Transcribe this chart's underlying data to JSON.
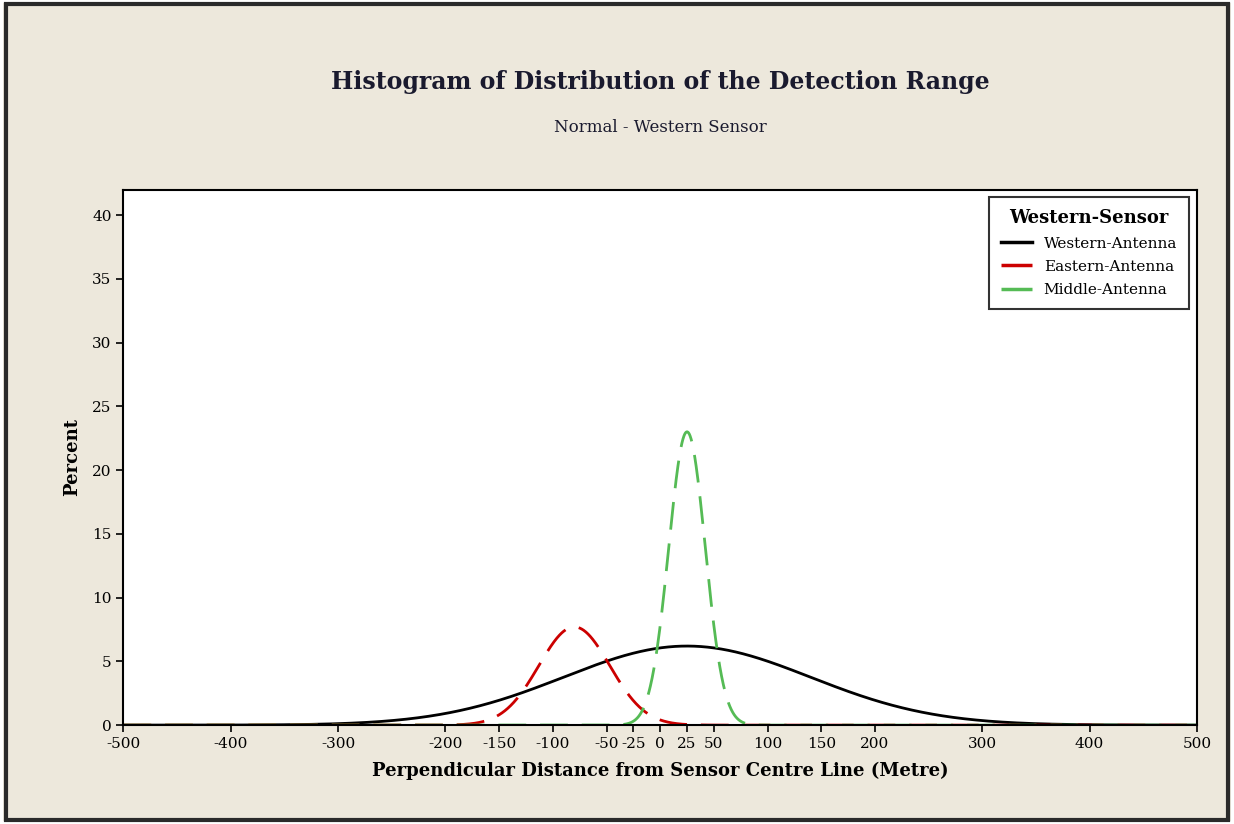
{
  "title": "Histogram of Distribution of the Detection Range",
  "subtitle": "Normal - Western Sensor",
  "xlabel": "Perpendicular Distance from Sensor Centre Line (Metre)",
  "ylabel": "Percent",
  "bg_color": "#ede8dc",
  "plot_bg_color": "#ffffff",
  "xlim": [
    -500,
    500
  ],
  "ylim": [
    0,
    42
  ],
  "xticks": [
    -500,
    -400,
    -300,
    -200,
    -150,
    -100,
    -50,
    -25,
    0,
    25,
    50,
    100,
    150,
    200,
    300,
    400,
    500
  ],
  "yticks": [
    0,
    5,
    10,
    15,
    20,
    25,
    30,
    35,
    40
  ],
  "western_antenna": {
    "mean": 25,
    "std": 115,
    "peak": 6.2,
    "color": "#000000",
    "linewidth": 2.0,
    "label": "Western-Antenna"
  },
  "eastern_antenna": {
    "mean": -80,
    "std": 33,
    "peak": 7.7,
    "color": "#cc0000",
    "linewidth": 2.0,
    "label": "Eastern-Antenna"
  },
  "middle_antenna": {
    "mean": 25,
    "std": 17,
    "peak": 23.0,
    "color": "#55bb55",
    "linewidth": 2.0,
    "label": "Middle-Antenna"
  },
  "legend_title": "Western-Sensor",
  "title_fontsize": 17,
  "subtitle_fontsize": 12,
  "axis_label_fontsize": 13,
  "tick_fontsize": 11,
  "legend_fontsize": 11,
  "legend_title_fontsize": 13
}
